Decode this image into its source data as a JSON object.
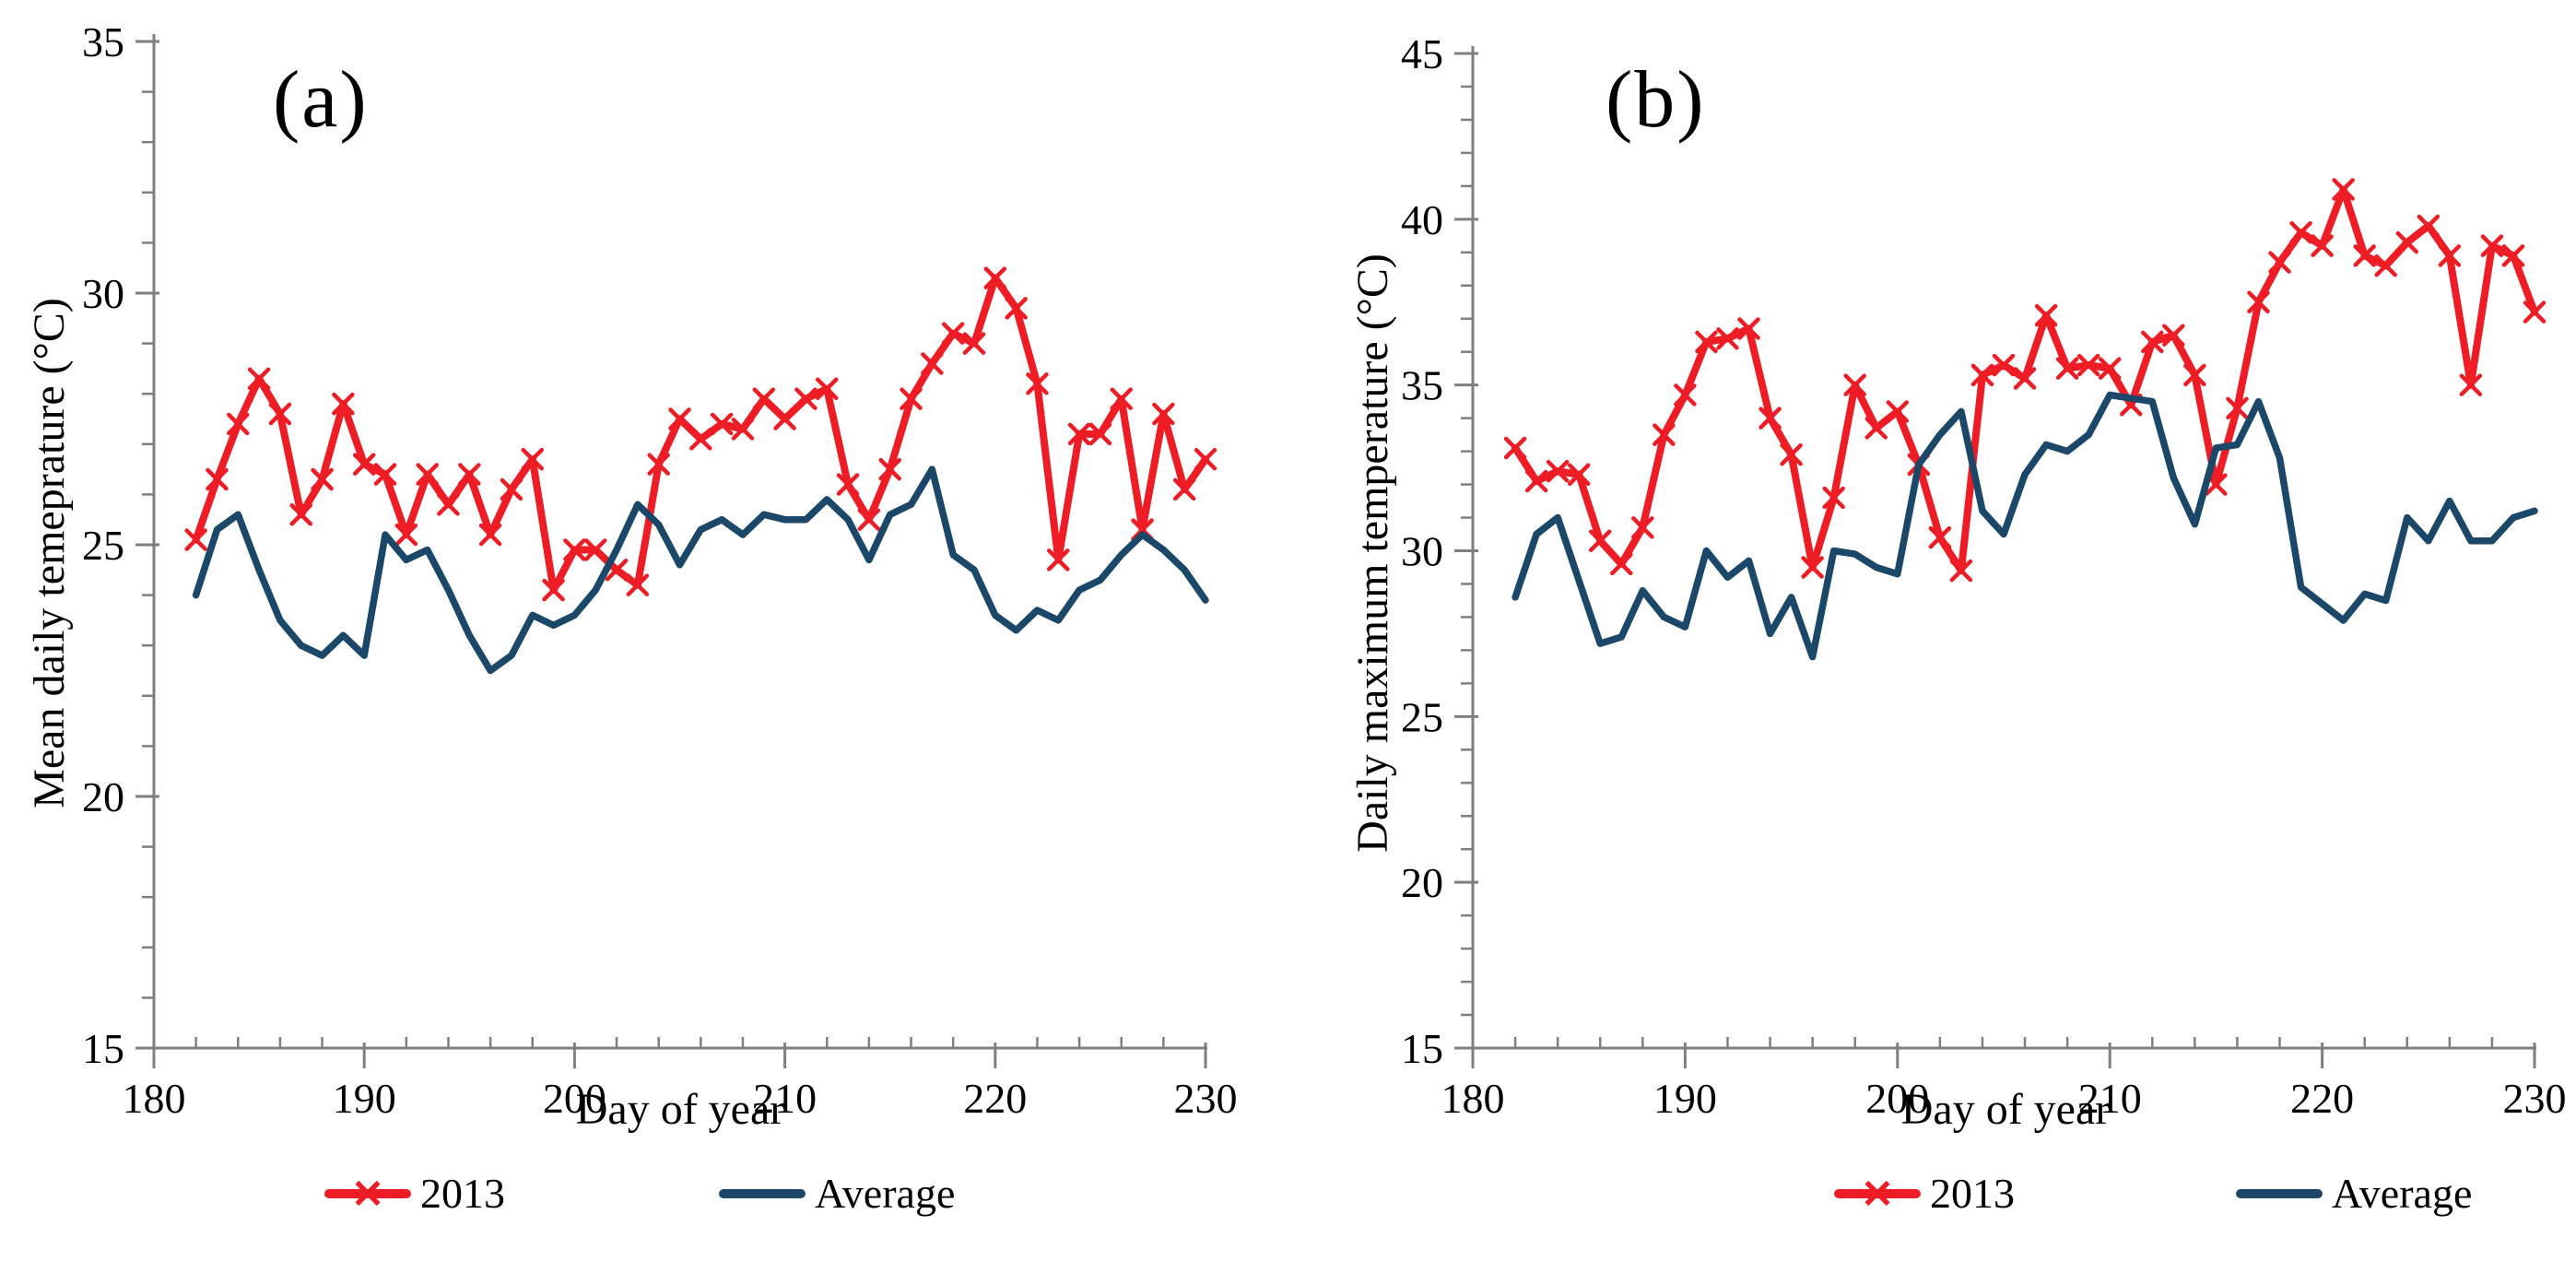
{
  "figure": {
    "background": "#ffffff"
  },
  "colors": {
    "series_2013": "#ee1c25",
    "series_average": "#1b4769",
    "axis": "#7f7f7f",
    "text": "#000000"
  },
  "legend_marker_glyph": "×",
  "chart_data": [
    {
      "type": "line",
      "panel_label": "(a)",
      "xlabel": "Day of year",
      "ylabel": "Mean daily temeprature (°C)",
      "xlim": [
        180,
        230
      ],
      "ylim": [
        15,
        35
      ],
      "x_ticks": [
        180,
        190,
        200,
        210,
        220,
        230
      ],
      "y_ticks": [
        15,
        20,
        25,
        30,
        35
      ],
      "x_minor_step": 2,
      "y_minor_step": 1,
      "grid": false,
      "legend_position": "bottom",
      "x": [
        182,
        183,
        184,
        185,
        186,
        187,
        188,
        189,
        190,
        191,
        192,
        193,
        194,
        195,
        196,
        197,
        198,
        199,
        200,
        201,
        202,
        203,
        204,
        205,
        206,
        207,
        208,
        209,
        210,
        211,
        212,
        213,
        214,
        215,
        216,
        217,
        218,
        219,
        220,
        221,
        222,
        223,
        224,
        225,
        226,
        227,
        228,
        229,
        230
      ],
      "series": [
        {
          "name": "2013",
          "color_key": "series_2013",
          "marker": "x",
          "values": [
            25.1,
            26.3,
            27.4,
            28.3,
            27.6,
            25.6,
            26.3,
            27.8,
            26.6,
            26.4,
            25.2,
            26.4,
            25.8,
            26.4,
            25.2,
            26.1,
            26.7,
            24.1,
            24.9,
            24.9,
            24.5,
            24.2,
            26.6,
            27.5,
            27.1,
            27.4,
            27.3,
            27.9,
            27.5,
            27.9,
            28.1,
            26.2,
            25.5,
            26.5,
            27.9,
            28.6,
            29.2,
            29.0,
            30.3,
            29.7,
            28.2,
            24.7,
            27.2,
            27.2,
            27.9,
            25.3,
            27.6,
            26.1,
            26.7
          ]
        },
        {
          "name": "Average",
          "color_key": "series_average",
          "marker": "none",
          "values": [
            24.0,
            25.3,
            25.6,
            24.5,
            23.5,
            23.0,
            22.8,
            23.2,
            22.8,
            25.2,
            24.7,
            24.9,
            24.1,
            23.2,
            22.5,
            22.8,
            23.6,
            23.4,
            23.6,
            24.1,
            24.9,
            25.8,
            25.4,
            24.6,
            25.3,
            25.5,
            25.2,
            25.6,
            25.5,
            25.5,
            25.9,
            25.5,
            24.7,
            25.6,
            25.8,
            26.5,
            24.8,
            24.5,
            23.6,
            23.3,
            23.7,
            23.5,
            24.1,
            24.3,
            24.8,
            25.2,
            24.9,
            24.5,
            23.9
          ]
        }
      ]
    },
    {
      "type": "line",
      "panel_label": "(b)",
      "xlabel": "Day of year",
      "ylabel": "Daily maximum temperature (°C)",
      "xlim": [
        180,
        230
      ],
      "ylim": [
        15,
        45
      ],
      "x_ticks": [
        180,
        190,
        200,
        210,
        220,
        230
      ],
      "y_ticks": [
        15,
        20,
        25,
        30,
        35,
        40,
        45
      ],
      "x_minor_step": 2,
      "y_minor_step": 1,
      "grid": false,
      "legend_position": "bottom",
      "x": [
        182,
        183,
        184,
        185,
        186,
        187,
        188,
        189,
        190,
        191,
        192,
        193,
        194,
        195,
        196,
        197,
        198,
        199,
        200,
        201,
        202,
        203,
        204,
        205,
        206,
        207,
        208,
        209,
        210,
        211,
        212,
        213,
        214,
        215,
        216,
        217,
        218,
        219,
        220,
        221,
        222,
        223,
        224,
        225,
        226,
        227,
        228,
        229,
        230
      ],
      "series": [
        {
          "name": "2013",
          "color_key": "series_2013",
          "marker": "x",
          "values": [
            33.1,
            32.1,
            32.4,
            32.3,
            30.3,
            29.6,
            30.7,
            33.5,
            34.7,
            36.3,
            36.4,
            36.7,
            34.0,
            32.9,
            29.5,
            31.6,
            35.0,
            33.7,
            34.2,
            32.6,
            30.4,
            29.4,
            35.3,
            35.6,
            35.2,
            37.1,
            35.5,
            35.6,
            35.5,
            34.4,
            36.3,
            36.5,
            35.3,
            32.0,
            34.3,
            37.5,
            38.7,
            39.6,
            39.2,
            40.9,
            38.9,
            38.6,
            39.3,
            39.8,
            38.9,
            35.0,
            39.2,
            38.9,
            37.2
          ]
        },
        {
          "name": "Average",
          "color_key": "series_average",
          "marker": "none",
          "values": [
            28.6,
            30.5,
            31.0,
            29.1,
            27.2,
            27.4,
            28.8,
            28.0,
            27.7,
            30.0,
            29.2,
            29.7,
            27.5,
            28.6,
            26.8,
            30.0,
            29.9,
            29.5,
            29.3,
            32.6,
            33.5,
            34.2,
            31.2,
            30.5,
            32.3,
            33.2,
            33.0,
            33.5,
            34.7,
            34.6,
            34.5,
            32.2,
            30.8,
            33.1,
            33.2,
            34.5,
            32.8,
            28.9,
            28.4,
            27.9,
            28.7,
            28.5,
            31.0,
            30.3,
            31.5,
            30.3,
            30.3,
            31.0,
            31.2
          ]
        }
      ]
    }
  ]
}
